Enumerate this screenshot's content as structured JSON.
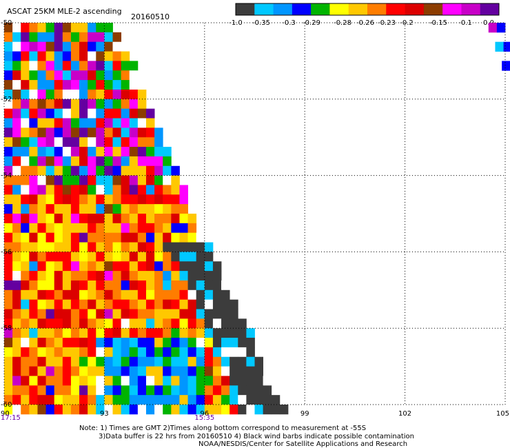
{
  "header": {
    "title": "ASCAT 25KM MLE-2 ascending",
    "date": "20160510"
  },
  "colorbar": {
    "colors": [
      "#3c3c3c",
      "#00c8ff",
      "#0096ff",
      "#0000ff",
      "#00b400",
      "#ffff00",
      "#ffc800",
      "#ff7d00",
      "#ff0000",
      "#dc0000",
      "#8c3c00",
      "#ff00ff",
      "#c800c8",
      "#6400a0"
    ],
    "labels": [
      "-1.0",
      "-0.35",
      "-0.3",
      "-0.29",
      "-0.28",
      "-0.26",
      "-0.23",
      "-0.2",
      "-0.15",
      "-0.1",
      "0.0"
    ]
  },
  "chart_data": {
    "type": "heatmap",
    "title": "ASCAT 25KM MLE-2 ascending",
    "x_ticks": [
      "90",
      "93",
      "96",
      "99",
      "102",
      "105"
    ],
    "y_ticks": [
      "-50",
      "-52",
      "-54",
      "-56",
      "-58",
      "-60"
    ],
    "xlim": [
      90,
      105
    ],
    "ylim": [
      -60,
      -50
    ],
    "grid": true,
    "time_labels": [
      {
        "lon": 90,
        "text": "17:15"
      },
      {
        "lon": 96,
        "text": "15:35"
      }
    ],
    "palette": [
      "#3c3c3c",
      "#00c8ff",
      "#0096ff",
      "#0000ff",
      "#00b400",
      "#ffff00",
      "#ffc800",
      "#ff7d00",
      "#ff0000",
      "#dc0000",
      "#8c3c00",
      "#ff00ff",
      "#c800c8",
      "#6400a0",
      "#ffffff"
    ],
    "cell_size_deg": 0.25,
    "swath_edge": [
      {
        "lat": -50.0,
        "lon_max": 93.2
      },
      {
        "lat": -51.0,
        "lon_max": 93.8
      },
      {
        "lat": -52.0,
        "lon_max": 94.2
      },
      {
        "lat": -53.0,
        "lon_max": 94.7
      },
      {
        "lat": -54.0,
        "lon_max": 95.2
      },
      {
        "lat": -55.0,
        "lon_max": 95.6
      },
      {
        "lat": -56.0,
        "lon_max": 96.2
      },
      {
        "lat": -57.0,
        "lon_max": 96.7
      },
      {
        "lat": -58.0,
        "lon_max": 97.3
      },
      {
        "lat": -59.0,
        "lon_max": 97.7
      },
      {
        "lat": -60.0,
        "lon_max": 98.3
      }
    ],
    "corner_patch": [
      {
        "lat": -50.0,
        "lon_min": 104.5
      },
      {
        "lat": -50.5,
        "lon_min": 104.7
      },
      {
        "lat": -51.0,
        "lon_min": 104.9
      },
      {
        "lat": -51.2,
        "lon_min": 105.0
      }
    ],
    "notes": [
      "Note: 1) Times are GMT 2)Times along bottom correspond to measurement at -55S",
      "3)Data buffer is 22 hrs from 20160510 4) Black wind barbs indicate possible contamination",
      "NOAA/NESDIS/Center for Satellite Applications and Research"
    ]
  }
}
